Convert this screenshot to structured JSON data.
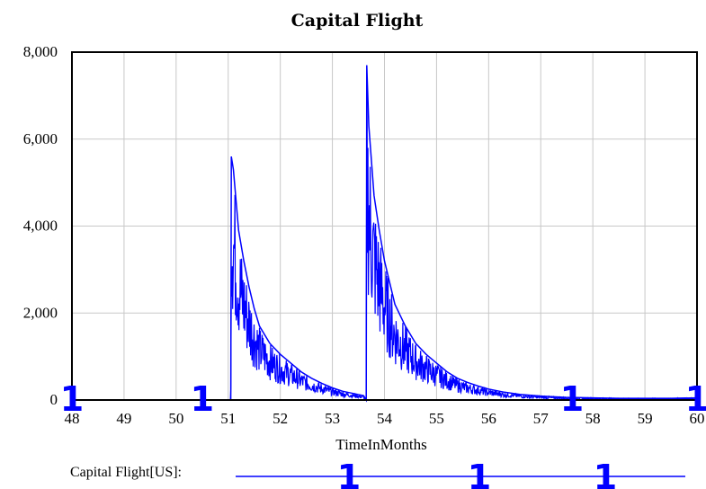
{
  "chart_data": {
    "type": "line",
    "title": "Capital Flight",
    "xlabel": "TimeInMonths",
    "ylabel": "",
    "xlim": [
      48,
      60
    ],
    "ylim": [
      0,
      8000
    ],
    "x_ticks": [
      48,
      49,
      50,
      51,
      52,
      53,
      54,
      55,
      56,
      57,
      58,
      59,
      60
    ],
    "x_tick_labels": [
      "48",
      "49",
      "50",
      "51",
      "52",
      "53",
      "54",
      "55",
      "56",
      "57",
      "58",
      "59",
      "60"
    ],
    "y_ticks": [
      0,
      2000,
      4000,
      6000,
      8000
    ],
    "y_tick_labels": [
      "0",
      "2,000",
      "4,000",
      "6,000",
      "8,000"
    ],
    "grid": true,
    "line_color": "#0000ff",
    "legend_position": "bottom",
    "series": [
      {
        "name": "Capital Flight[US]",
        "legend_label": "Capital Flight[US]:",
        "marker_label": "1",
        "markers_x": [
          48.0,
          50.5,
          57.6,
          60.0
        ],
        "x": [
          48.0,
          51.05,
          51.06,
          51.1,
          51.2,
          51.3,
          51.4,
          51.5,
          51.6,
          51.8,
          52.0,
          52.2,
          52.4,
          52.6,
          52.8,
          53.0,
          53.2,
          53.4,
          53.6,
          53.65,
          53.66,
          53.7,
          53.8,
          53.9,
          54.0,
          54.1,
          54.2,
          54.4,
          54.6,
          54.8,
          55.0,
          55.2,
          55.4,
          55.6,
          55.8,
          56.0,
          56.3,
          56.6,
          57.0,
          57.5,
          58.0,
          58.5,
          59.0,
          59.5,
          60.0
        ],
        "y": [
          0,
          0,
          5600,
          5300,
          3900,
          3200,
          2600,
          2100,
          1700,
          1300,
          1050,
          850,
          650,
          500,
          380,
          280,
          200,
          150,
          100,
          0,
          7700,
          6300,
          4700,
          3900,
          3200,
          2700,
          2200,
          1700,
          1300,
          1050,
          850,
          650,
          500,
          400,
          320,
          250,
          180,
          130,
          90,
          60,
          50,
          40,
          40,
          40,
          50
        ]
      }
    ]
  }
}
